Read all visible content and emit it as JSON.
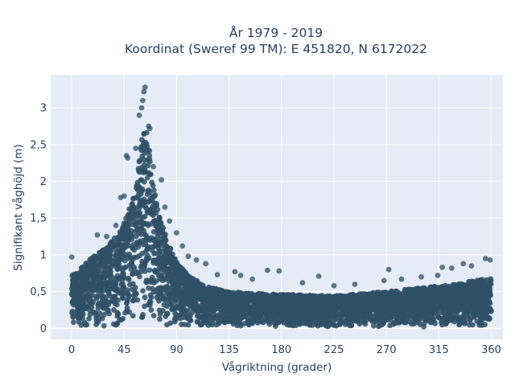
{
  "chart_data": {
    "type": "scatter",
    "title": [
      "År 1979 - 2019",
      "Koordinat (Sweref 99 TM): E 451820, N 6172022"
    ],
    "xlabel": "Vågriktning (grader)",
    "ylabel": "Signifikant våghöjd (m)",
    "xlim": [
      -18,
      370
    ],
    "ylim": [
      -0.15,
      3.45
    ],
    "x_ticks": [
      0,
      45,
      90,
      135,
      180,
      225,
      270,
      315,
      360
    ],
    "x_tick_labels": [
      "0",
      "45",
      "90",
      "135",
      "180",
      "225",
      "270",
      "315",
      "360"
    ],
    "y_ticks": [
      0,
      0.5,
      1,
      1.5,
      2,
      2.5,
      3
    ],
    "y_tick_labels": [
      "0",
      "0,5",
      "1",
      "1,5",
      "2",
      "2,5",
      "3"
    ],
    "grid": true,
    "colors": {
      "plot_bg": "#e5ecf6",
      "grid": "#ffffff",
      "marker": "#2f5066",
      "text": "#2a3f5f"
    },
    "upper_envelope": {
      "x": [
        0,
        10,
        20,
        30,
        40,
        45,
        50,
        55,
        58,
        60,
        62,
        65,
        68,
        70,
        75,
        80,
        85,
        90,
        100,
        110,
        120,
        135,
        150,
        180,
        225,
        270,
        300,
        330,
        345,
        360
      ],
      "y": [
        0.72,
        0.85,
        1.0,
        1.12,
        1.3,
        1.45,
        1.65,
        1.95,
        2.3,
        2.55,
        2.7,
        2.65,
        2.25,
        1.95,
        1.55,
        1.3,
        1.1,
        0.9,
        0.72,
        0.62,
        0.55,
        0.5,
        0.48,
        0.46,
        0.44,
        0.5,
        0.55,
        0.6,
        0.65,
        0.68
      ]
    },
    "outliers": [
      {
        "x": 0,
        "y": 0.97
      },
      {
        "x": 22,
        "y": 1.27
      },
      {
        "x": 30,
        "y": 1.25
      },
      {
        "x": 38,
        "y": 1.4
      },
      {
        "x": 42,
        "y": 1.78
      },
      {
        "x": 45,
        "y": 1.8
      },
      {
        "x": 47,
        "y": 2.35
      },
      {
        "x": 48,
        "y": 2.32
      },
      {
        "x": 55,
        "y": 2.45
      },
      {
        "x": 58,
        "y": 2.9
      },
      {
        "x": 60,
        "y": 3.0
      },
      {
        "x": 61,
        "y": 3.1
      },
      {
        "x": 62,
        "y": 3.22
      },
      {
        "x": 63,
        "y": 3.28
      },
      {
        "x": 66,
        "y": 2.75
      },
      {
        "x": 67,
        "y": 2.72
      },
      {
        "x": 70,
        "y": 2.2
      },
      {
        "x": 77,
        "y": 2.02
      },
      {
        "x": 80,
        "y": 1.65
      },
      {
        "x": 84,
        "y": 1.46
      },
      {
        "x": 90,
        "y": 1.3
      },
      {
        "x": 95,
        "y": 1.12
      },
      {
        "x": 100,
        "y": 0.98
      },
      {
        "x": 107,
        "y": 0.93
      },
      {
        "x": 115,
        "y": 0.88
      },
      {
        "x": 125,
        "y": 0.73
      },
      {
        "x": 140,
        "y": 0.77
      },
      {
        "x": 145,
        "y": 0.72
      },
      {
        "x": 155,
        "y": 0.67
      },
      {
        "x": 168,
        "y": 0.79
      },
      {
        "x": 178,
        "y": 0.78
      },
      {
        "x": 198,
        "y": 0.62
      },
      {
        "x": 212,
        "y": 0.71
      },
      {
        "x": 225,
        "y": 0.58
      },
      {
        "x": 243,
        "y": 0.6
      },
      {
        "x": 268,
        "y": 0.65
      },
      {
        "x": 272,
        "y": 0.8
      },
      {
        "x": 283,
        "y": 0.67
      },
      {
        "x": 300,
        "y": 0.7
      },
      {
        "x": 314,
        "y": 0.72
      },
      {
        "x": 318,
        "y": 0.83
      },
      {
        "x": 326,
        "y": 0.82
      },
      {
        "x": 336,
        "y": 0.88
      },
      {
        "x": 343,
        "y": 0.85
      },
      {
        "x": 355,
        "y": 0.95
      },
      {
        "x": 359,
        "y": 0.93
      }
    ]
  }
}
